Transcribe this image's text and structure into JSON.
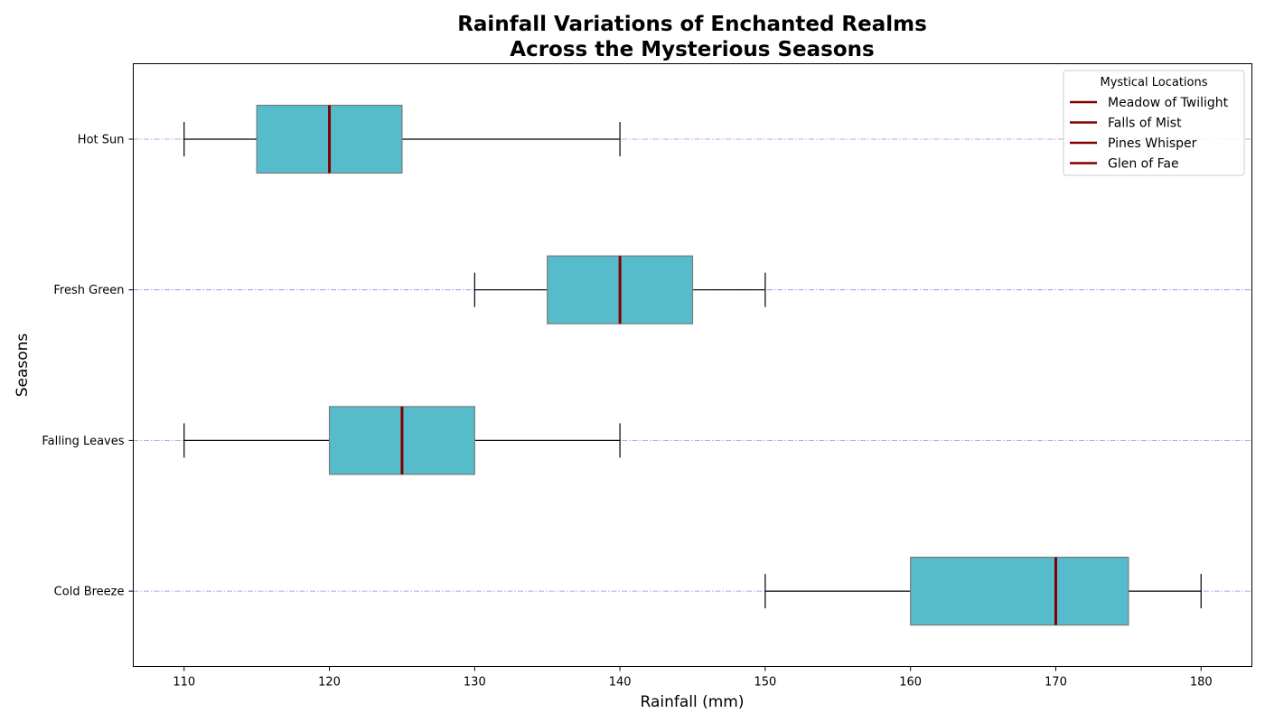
{
  "chart_data": {
    "type": "boxplot",
    "orientation": "horizontal",
    "title_lines": [
      "Rainfall Variations of Enchanted Realms",
      "Across the Mysterious Seasons"
    ],
    "xlabel": "Rainfall (mm)",
    "ylabel": "Seasons",
    "xlim": [
      106.5,
      183.5
    ],
    "xticks": [
      110,
      120,
      130,
      140,
      150,
      160,
      170,
      180
    ],
    "categories": [
      "Hot Sun",
      "Fresh Green",
      "Falling Leaves",
      "Cold Breeze"
    ],
    "boxes": [
      {
        "category": "Hot Sun",
        "whisker_low": 110,
        "q1": 115,
        "median": 120,
        "q3": 125,
        "whisker_high": 140
      },
      {
        "category": "Fresh Green",
        "whisker_low": 130,
        "q1": 135,
        "median": 140,
        "q3": 145,
        "whisker_high": 150
      },
      {
        "category": "Falling Leaves",
        "whisker_low": 110,
        "q1": 120,
        "median": 125,
        "q3": 130,
        "whisker_high": 140
      },
      {
        "category": "Cold Breeze",
        "whisker_low": 150,
        "q1": 160,
        "median": 170,
        "q3": 175,
        "whisker_high": 180
      }
    ],
    "grid": "horizontal dash-dot lines at each category",
    "legend": {
      "title": "Mystical Locations",
      "placement": "top-right",
      "entries": [
        "Meadow of Twilight",
        "Falls of Mist",
        "Pines Whisper",
        "Glen of Fae"
      ]
    },
    "colors": {
      "box_fill": "#56bccb",
      "box_edge": "#7a7a7a",
      "median": "#800000",
      "whisker": "#000000",
      "grid": "#7b68ee",
      "legend_line": "#800000"
    }
  }
}
